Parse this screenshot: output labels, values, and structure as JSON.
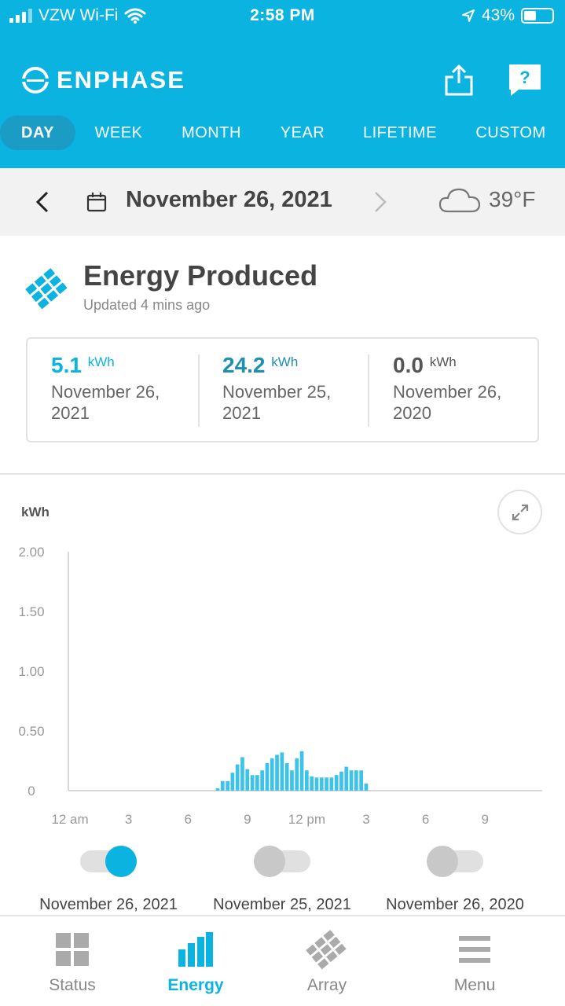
{
  "status_bar": {
    "carrier": "VZW Wi-Fi",
    "time": "2:58 PM",
    "battery": "43%",
    "battery_level": 0.43
  },
  "header": {
    "logo_text": "ENPHASE",
    "tabs": [
      {
        "label": "DAY",
        "active": true
      },
      {
        "label": "WEEK",
        "active": false
      },
      {
        "label": "MONTH",
        "active": false
      },
      {
        "label": "YEAR",
        "active": false
      },
      {
        "label": "LIFETIME",
        "active": false
      },
      {
        "label": "CUSTOM",
        "active": false
      }
    ],
    "help_label": "?"
  },
  "date_bar": {
    "date": "November 26, 2021",
    "temperature": "39°F",
    "weather_icon": "cloud-icon"
  },
  "energy": {
    "title": "Energy Produced",
    "updated": "Updated 4 mins ago",
    "summary": [
      {
        "value": "5.1",
        "unit": "kWh",
        "date_line1": "November 26,",
        "date_line2": "2021",
        "color": "#0bb4e0"
      },
      {
        "value": "24.2",
        "unit": "kWh",
        "date_line1": "November 25,",
        "date_line2": "2021",
        "color": "#1f8fb0"
      },
      {
        "value": "0.0",
        "unit": "kWh",
        "date_line1": "November 26,",
        "date_line2": "2020",
        "color": "#555555"
      }
    ]
  },
  "chart_data": {
    "type": "bar",
    "ylabel": "kWh",
    "ylim": [
      0,
      2
    ],
    "yticks": [
      "2.00",
      "1.50",
      "1.00",
      "0.50",
      "0"
    ],
    "ytick_values": [
      2,
      1.5,
      1,
      0.5,
      0
    ],
    "xticks": [
      "12 am",
      "3",
      "6",
      "9",
      "12 pm",
      "3",
      "6",
      "9"
    ],
    "xtick_hours": [
      0,
      3,
      6,
      9,
      12,
      15,
      18,
      21
    ],
    "x_hours": [
      7.5,
      7.75,
      8.0,
      8.25,
      8.5,
      8.75,
      9.0,
      9.25,
      9.5,
      9.75,
      10.0,
      10.25,
      10.5,
      10.75,
      11.0,
      11.25,
      11.5,
      11.75,
      12.0,
      12.25,
      12.5,
      12.75,
      13.0,
      13.25,
      13.5,
      13.75,
      14.0,
      14.25,
      14.5,
      14.75,
      15.0,
      15.25
    ],
    "series": [
      {
        "values": [
          0.02,
          0.08,
          0.08,
          0.15,
          0.22,
          0.28,
          0.18,
          0.13,
          0.13,
          0.17,
          0.23,
          0.27,
          0.3,
          0.32,
          0.23,
          0.17,
          0.27,
          0.33,
          0.17,
          0.12,
          0.11,
          0.11,
          0.11,
          0.11,
          0.13,
          0.16,
          0.2,
          0.17,
          0.17,
          0.17,
          0.06,
          0.0
        ],
        "color": "#3cc3ea"
      }
    ],
    "grid": false
  },
  "toggles": [
    {
      "label": "November 26, 2021",
      "on": true
    },
    {
      "label": "November 25, 2021",
      "on": false
    },
    {
      "label": "November 26, 2020",
      "on": false
    }
  ],
  "bottom_nav": [
    {
      "label": "Status",
      "icon": "grid-icon",
      "active": false
    },
    {
      "label": "Energy",
      "icon": "bar-chart-icon",
      "active": true
    },
    {
      "label": "Array",
      "icon": "array-icon",
      "active": false
    },
    {
      "label": "Menu",
      "icon": "menu-icon",
      "active": false
    }
  ]
}
